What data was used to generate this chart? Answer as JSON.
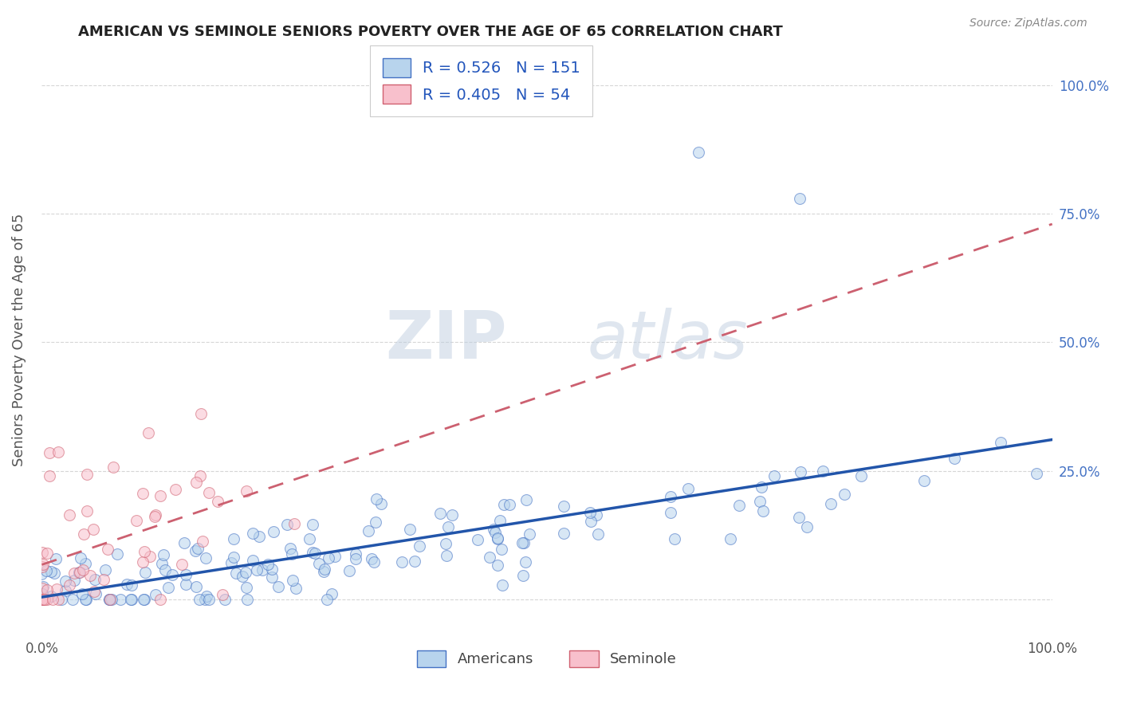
{
  "title": "AMERICAN VS SEMINOLE SENIORS POVERTY OVER THE AGE OF 65 CORRELATION CHART",
  "source": "Source: ZipAtlas.com",
  "ylabel": "Seniors Poverty Over the Age of 65",
  "xlim": [
    0,
    1
  ],
  "ylim": [
    -0.07,
    1.08
  ],
  "ytick_values": [
    0.0,
    0.25,
    0.5,
    0.75,
    1.0
  ],
  "ytick_labels_right": [
    "",
    "25.0%",
    "50.0%",
    "75.0%",
    "100.0%"
  ],
  "xtick_values": [
    0.0,
    1.0
  ],
  "xtick_labels": [
    "0.0%",
    "100.0%"
  ],
  "legend_r1": "R = 0.526",
  "legend_n1": "N = 151",
  "legend_r2": "R = 0.405",
  "legend_n2": "N = 54",
  "legend_label1": "Americans",
  "legend_label2": "Seminole",
  "color_american_face": "#b8d4ed",
  "color_american_edge": "#4472c4",
  "color_seminole_face": "#f8c0cc",
  "color_seminole_edge": "#d06070",
  "color_line_american": "#2255aa",
  "color_line_seminole": "#cc6070",
  "background_color": "#ffffff",
  "grid_color": "#cccccc",
  "title_color": "#222222",
  "source_color": "#888888",
  "ytick_color_right": "#4472c4",
  "legend_text_color": "#2255bb",
  "legend_edge_color": "#cccccc"
}
